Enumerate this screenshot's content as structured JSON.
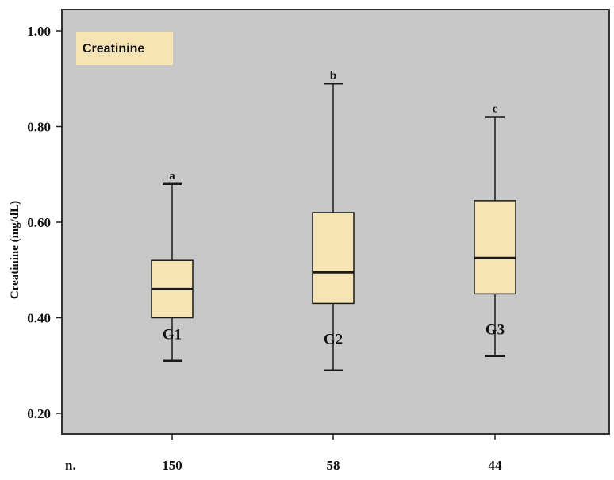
{
  "chart_data": {
    "type": "box",
    "title": "Creatinine",
    "ylabel": "Creatinine (mg/dL)",
    "ylim": [
      0.2,
      1.0
    ],
    "yticks": [
      "0.20",
      "0.40",
      "0.60",
      "0.80",
      "1.00"
    ],
    "ytick_values": [
      0.2,
      0.4,
      0.6,
      0.8,
      1.0
    ],
    "grid": false,
    "n_label": "n.",
    "groups": [
      {
        "name": "G1",
        "letter": "a",
        "n": "150",
        "min": 0.31,
        "q1": 0.4,
        "median": 0.46,
        "q3": 0.52,
        "max": 0.68,
        "label_y": 0.385
      },
      {
        "name": "G2",
        "letter": "b",
        "n": "58",
        "min": 0.29,
        "q1": 0.43,
        "median": 0.495,
        "q3": 0.62,
        "max": 0.89,
        "label_y": 0.375
      },
      {
        "name": "G3",
        "letter": "c",
        "n": "44",
        "min": 0.32,
        "q1": 0.45,
        "median": 0.525,
        "q3": 0.645,
        "max": 0.82,
        "label_y": 0.395
      }
    ]
  },
  "colors": {
    "plot_background": "#c8c8c8",
    "box_fill": "#f6e4b4",
    "legend_fill": "#f6e4b4",
    "stroke": "#1a1a1a"
  }
}
